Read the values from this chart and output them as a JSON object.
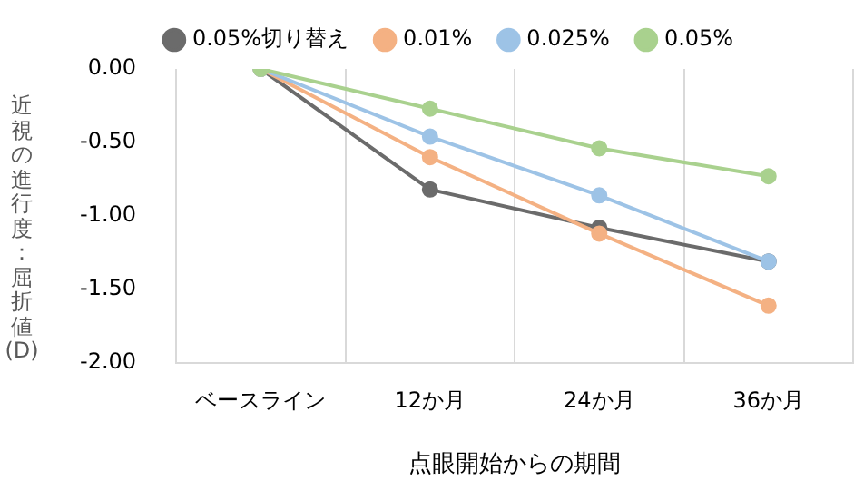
{
  "chart_data": {
    "type": "line",
    "xlabel": "点眼開始からの期間",
    "ylabel": "近視の進行度：屈折値(D)",
    "categories": [
      "ベースライン",
      "12か月",
      "24か月",
      "36か月"
    ],
    "series": [
      {
        "name": "0.05%切り替え",
        "color": "#6b6b6b",
        "values": [
          0,
          -0.82,
          -1.08,
          -1.31
        ]
      },
      {
        "name": "0.01%",
        "color": "#f4b183",
        "values": [
          0,
          -0.6,
          -1.12,
          -1.61
        ]
      },
      {
        "name": "0.025%",
        "color": "#9dc3e6",
        "values": [
          0,
          -0.46,
          -0.86,
          -1.31
        ]
      },
      {
        "name": "0.05%",
        "color": "#a9d18e",
        "values": [
          0,
          -0.27,
          -0.54,
          -0.73
        ]
      }
    ],
    "ylim": [
      -2,
      0
    ],
    "yticks": [
      {
        "value": -2,
        "label": "-2.00"
      },
      {
        "value": -1.5,
        "label": "-1.50"
      },
      {
        "value": -1,
        "label": "-1.00"
      },
      {
        "value": -0.5,
        "label": "-0.50"
      },
      {
        "value": 0,
        "label": "0.00"
      }
    ],
    "grid": "x",
    "legend": "top",
    "marker": "circle",
    "line_style": "solid"
  }
}
